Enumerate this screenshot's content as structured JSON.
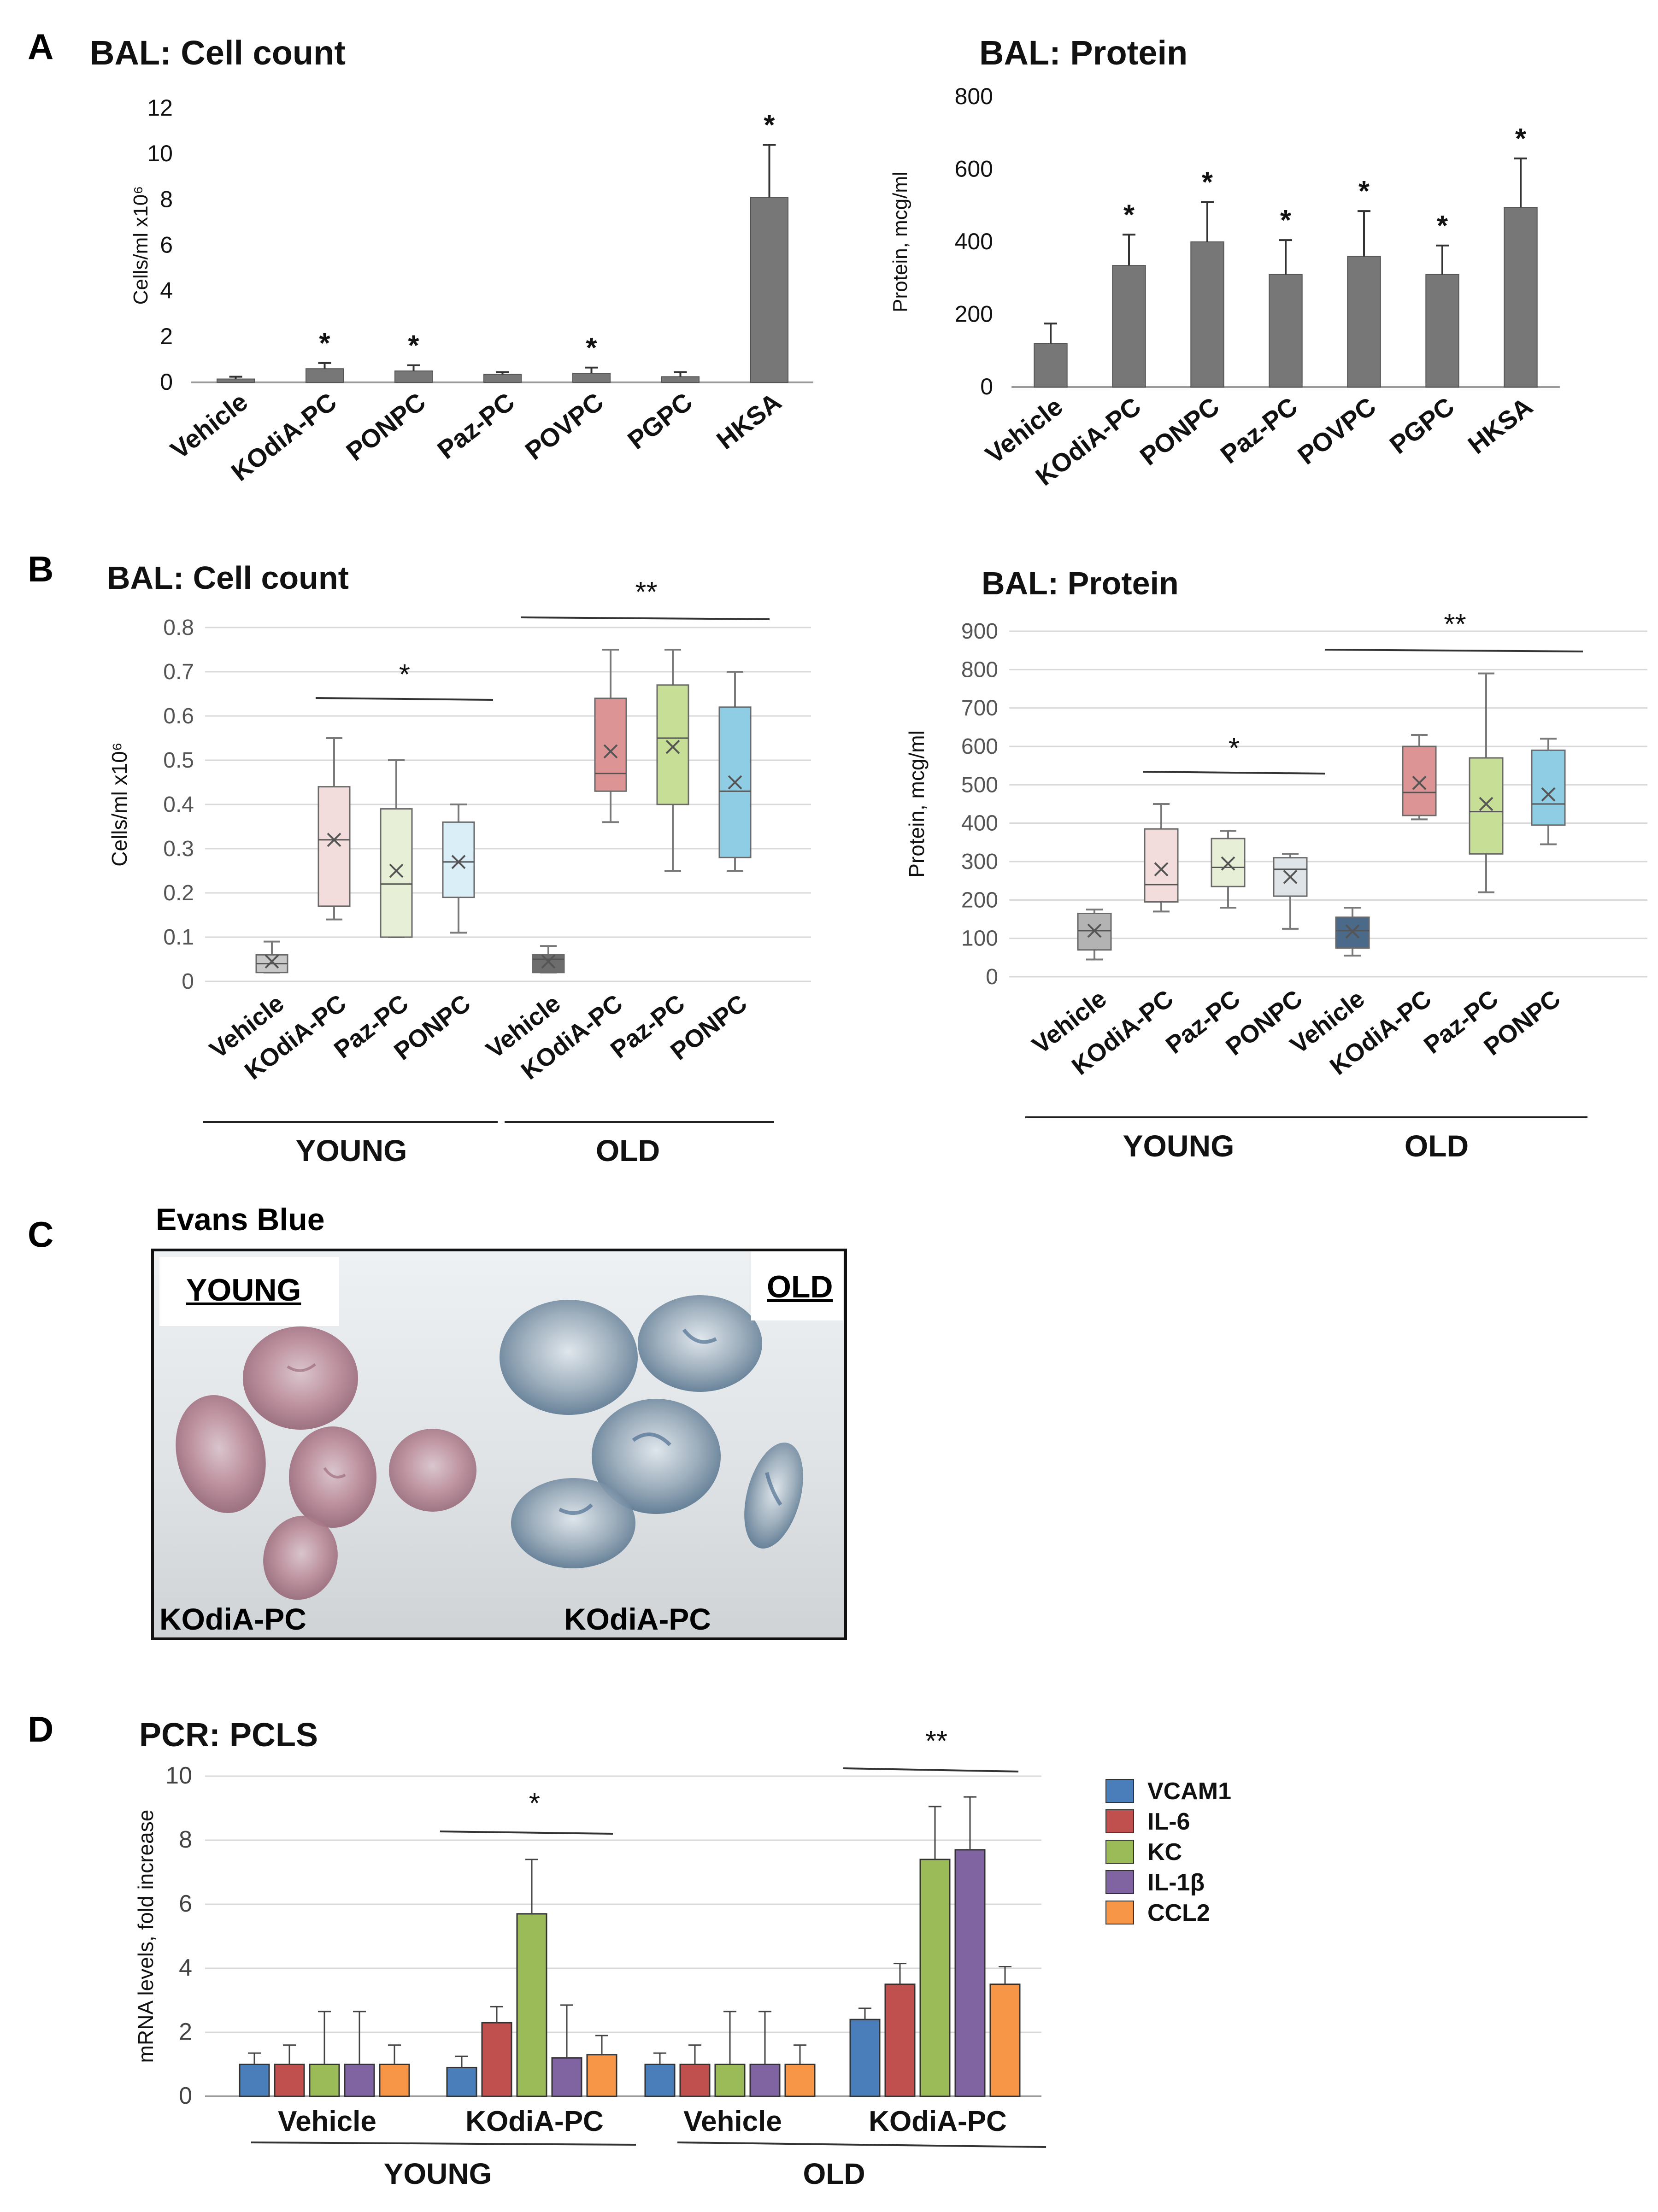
{
  "panels": {
    "A": "A",
    "B": "B",
    "C": "C",
    "D": "D"
  },
  "chart_data": [
    {
      "id": "A1",
      "type": "bar",
      "title": "BAL: Cell count",
      "ylabel": "Cells/ml x10⁶",
      "ylim": [
        0,
        12
      ],
      "yticks": [
        "0",
        "2",
        "4",
        "6",
        "8",
        "10",
        "12"
      ],
      "categories": [
        "Vehicle",
        "KOdiA-PC",
        "PONPC",
        "Paz-PC",
        "POVPC",
        "PGPC",
        "HKSA"
      ],
      "values": [
        0.15,
        0.6,
        0.5,
        0.35,
        0.4,
        0.25,
        8.1
      ],
      "errors": [
        0.1,
        0.25,
        0.25,
        0.1,
        0.25,
        0.2,
        2.3
      ],
      "significance": [
        "",
        "*",
        "*",
        "",
        "*",
        "",
        "*"
      ],
      "color": "#777777"
    },
    {
      "id": "A2",
      "type": "bar",
      "title": "BAL: Protein",
      "ylabel": "Protein, mcg/ml",
      "ylim": [
        0,
        800
      ],
      "yticks": [
        "0",
        "200",
        "400",
        "600",
        "800"
      ],
      "categories": [
        "Vehicle",
        "KOdiA-PC",
        "PONPC",
        "Paz-PC",
        "POVPC",
        "PGPC",
        "HKSA"
      ],
      "values": [
        120,
        335,
        400,
        310,
        360,
        310,
        495
      ],
      "errors": [
        55,
        85,
        110,
        95,
        125,
        80,
        135
      ],
      "significance": [
        "",
        "*",
        "*",
        "*",
        "*",
        "*",
        "*"
      ],
      "color": "#777777"
    },
    {
      "id": "B1",
      "type": "box",
      "title": "BAL: Cell count",
      "ylabel": "Cells/ml x10⁶",
      "ylim": [
        0,
        0.8
      ],
      "yticks": [
        "0",
        "0.1",
        "0.2",
        "0.3",
        "0.4",
        "0.5",
        "0.6",
        "0.7",
        "0.8"
      ],
      "categories": [
        "Vehicle",
        "KOdiA-PC",
        "Paz-PC",
        "PONPC",
        "Vehicle",
        "KOdiA-PC",
        "Paz-PC",
        "PONPC"
      ],
      "groups": [
        "YOUNG",
        "OLD"
      ],
      "boxes": [
        {
          "min": 0.02,
          "q1": 0.02,
          "median": 0.04,
          "q3": 0.06,
          "max": 0.09,
          "mean": 0.045,
          "color": "#c9c9c9"
        },
        {
          "min": 0.14,
          "q1": 0.17,
          "median": 0.32,
          "q3": 0.44,
          "max": 0.55,
          "mean": 0.32,
          "color": "#f3dcdc"
        },
        {
          "min": 0.1,
          "q1": 0.1,
          "median": 0.22,
          "q3": 0.39,
          "max": 0.5,
          "mean": 0.25,
          "color": "#e7efd6"
        },
        {
          "min": 0.11,
          "q1": 0.19,
          "median": 0.27,
          "q3": 0.36,
          "max": 0.4,
          "mean": 0.27,
          "color": "#d9eef6"
        },
        {
          "min": 0.02,
          "q1": 0.02,
          "median": 0.05,
          "q3": 0.06,
          "max": 0.08,
          "mean": 0.045,
          "color": "#6d6d6d"
        },
        {
          "min": 0.36,
          "q1": 0.43,
          "median": 0.47,
          "q3": 0.64,
          "max": 0.75,
          "mean": 0.52,
          "color": "#dc9494"
        },
        {
          "min": 0.25,
          "q1": 0.4,
          "median": 0.55,
          "q3": 0.67,
          "max": 0.75,
          "mean": 0.53,
          "color": "#c6de96"
        },
        {
          "min": 0.25,
          "q1": 0.28,
          "median": 0.43,
          "q3": 0.62,
          "max": 0.7,
          "mean": 0.45,
          "color": "#8ecde4"
        }
      ],
      "significance": [
        "*",
        "**"
      ]
    },
    {
      "id": "B2",
      "type": "box",
      "title": "BAL: Protein",
      "ylabel": "Protein, mcg/ml",
      "ylim": [
        0,
        900
      ],
      "yticks": [
        "0",
        "100",
        "200",
        "300",
        "400",
        "500",
        "600",
        "700",
        "800",
        "900"
      ],
      "categories": [
        "Vehicle",
        "KOdiA-PC",
        "Paz-PC",
        "PONPC",
        "Vehicle",
        "KOdiA-PC",
        "Paz-PC",
        "PONPC"
      ],
      "groups": [
        "YOUNG",
        "OLD"
      ],
      "boxes": [
        {
          "min": 45,
          "q1": 70,
          "median": 120,
          "q3": 165,
          "max": 175,
          "mean": 120,
          "color": "#b3b3b3"
        },
        {
          "min": 170,
          "q1": 195,
          "median": 240,
          "q3": 385,
          "max": 450,
          "mean": 280,
          "color": "#f3dcdc"
        },
        {
          "min": 180,
          "q1": 235,
          "median": 285,
          "q3": 360,
          "max": 380,
          "mean": 295,
          "color": "#e7efd6"
        },
        {
          "min": 125,
          "q1": 210,
          "median": 280,
          "q3": 310,
          "max": 320,
          "mean": 260,
          "color": "#dfe4e8"
        },
        {
          "min": 55,
          "q1": 75,
          "median": 120,
          "q3": 155,
          "max": 180,
          "mean": 118,
          "color": "#4b6a8a"
        },
        {
          "min": 410,
          "q1": 420,
          "median": 480,
          "q3": 600,
          "max": 630,
          "mean": 505,
          "color": "#dc9494"
        },
        {
          "min": 220,
          "q1": 320,
          "median": 430,
          "q3": 570,
          "max": 790,
          "mean": 450,
          "color": "#c6de96"
        },
        {
          "min": 345,
          "q1": 395,
          "median": 450,
          "q3": 590,
          "max": 620,
          "mean": 475,
          "color": "#8ecde4"
        }
      ],
      "significance": [
        "*",
        "**"
      ]
    },
    {
      "id": "D",
      "type": "bar",
      "title": "PCR: PCLS",
      "ylabel": "mRNA levels, fold increase",
      "ylim": [
        0,
        10
      ],
      "yticks": [
        "0",
        "2",
        "4",
        "6",
        "8",
        "10"
      ],
      "categories": [
        "Vehicle",
        "KOdiA-PC",
        "Vehicle",
        "KOdiA-PC"
      ],
      "groups": [
        "YOUNG",
        "OLD"
      ],
      "series": [
        {
          "name": "VCAM1",
          "color": "#4a7ebb",
          "values": [
            1.0,
            0.9,
            1.0,
            2.4
          ],
          "errors": [
            0.35,
            0.35,
            0.35,
            0.35
          ]
        },
        {
          "name": "IL-6",
          "color": "#c0504d",
          "values": [
            1.0,
            2.3,
            1.0,
            3.5
          ],
          "errors": [
            0.6,
            0.5,
            0.6,
            0.65
          ]
        },
        {
          "name": "KC",
          "color": "#9bbb59",
          "values": [
            1.0,
            5.7,
            1.0,
            7.4
          ],
          "errors": [
            1.65,
            1.7,
            1.65,
            1.65
          ]
        },
        {
          "name": "IL-1β",
          "color": "#8064a2",
          "values": [
            1.0,
            1.2,
            1.0,
            7.7
          ],
          "errors": [
            1.65,
            1.65,
            1.65,
            1.65
          ]
        },
        {
          "name": "CCL2",
          "color": "#f79646",
          "values": [
            1.0,
            1.3,
            1.0,
            3.5
          ],
          "errors": [
            0.6,
            0.6,
            0.6,
            0.55
          ]
        }
      ],
      "significance": [
        "*",
        "**"
      ]
    }
  ],
  "photo": {
    "title": "Evans Blue",
    "left_label": "YOUNG",
    "right_label": "OLD",
    "left_caption": "KOdiA-PC",
    "right_caption": "KOdiA-PC"
  }
}
